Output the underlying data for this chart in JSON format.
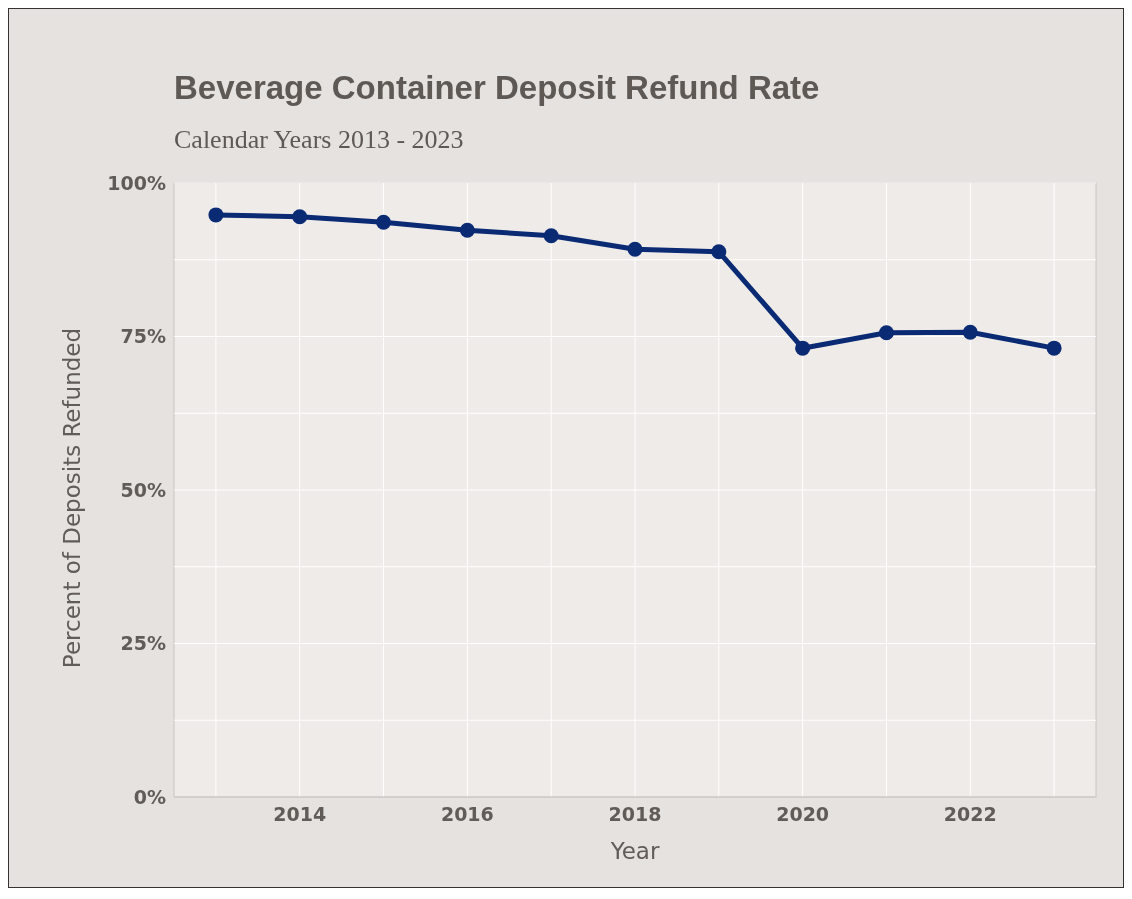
{
  "chart_data": {
    "type": "line",
    "title": "Beverage Container Deposit Refund Rate",
    "subtitle": "Calendar Years 2013 - 2023",
    "xlabel": "Year",
    "ylabel": "Percent of Deposits Refunded",
    "x": [
      2013,
      2014,
      2015,
      2016,
      2017,
      2018,
      2019,
      2020,
      2021,
      2022,
      2023
    ],
    "series": [
      {
        "color": "#0b2a74",
        "values": [
          94.8,
          94.5,
          93.6,
          92.3,
          91.4,
          89.2,
          88.8,
          73.1,
          75.6,
          75.7,
          73.1
        ]
      }
    ],
    "xlim": [
      2012.5,
      2023.5
    ],
    "xticks": [
      {
        "value": 2013,
        "label": null
      },
      2014,
      {
        "value": 2015,
        "label": null
      },
      2016,
      {
        "value": 2017,
        "label": null
      },
      2018,
      {
        "value": 2019,
        "label": null
      },
      2020,
      {
        "value": 2021,
        "label": null
      },
      2022,
      {
        "value": 2023,
        "label": null
      }
    ],
    "ylim": [
      0,
      100
    ],
    "yticks": [
      {
        "value": 0,
        "label": "0%"
      },
      {
        "value": 12.5,
        "label": null
      },
      {
        "value": 25,
        "label": "25%"
      },
      {
        "value": 37.5,
        "label": null
      },
      {
        "value": 50,
        "label": "50%"
      },
      {
        "value": 62.5,
        "label": null
      },
      {
        "value": 75,
        "label": "75%"
      },
      {
        "value": 87.5,
        "label": null
      },
      {
        "value": 100,
        "label": "100%"
      }
    ],
    "grid": true,
    "marker": "circle",
    "line_style": "solid"
  }
}
